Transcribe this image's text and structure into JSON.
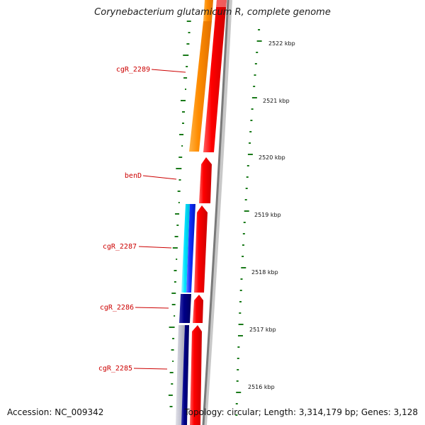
{
  "title": "Corynebacterium glutamicum R, complete genome",
  "accession": "Accession: NC_009342",
  "topology": "Topology: circular; Length: 3,314,179 bp; Genes: 3,128",
  "scale_labels": [
    "2522 kbp",
    "2521 kbp",
    "2520 kbp",
    "2519 kbp",
    "2518 kbp",
    "2517 kbp",
    "2516 kbp"
  ],
  "gene_labels": [
    "cgR_2289",
    "benD",
    "cgR_2287",
    "cgR_2286",
    "cgR_2285"
  ],
  "colors": {
    "label_red": "#cc0000",
    "tick_green": "#1a7a1a",
    "feature_red": "#ee0000",
    "feature_orange": "#ff8c00",
    "feature_cyan": "#00e5ff",
    "feature_blue": "#0a2aff",
    "feature_navy": "#000080",
    "backbone_gray": "#808080"
  }
}
